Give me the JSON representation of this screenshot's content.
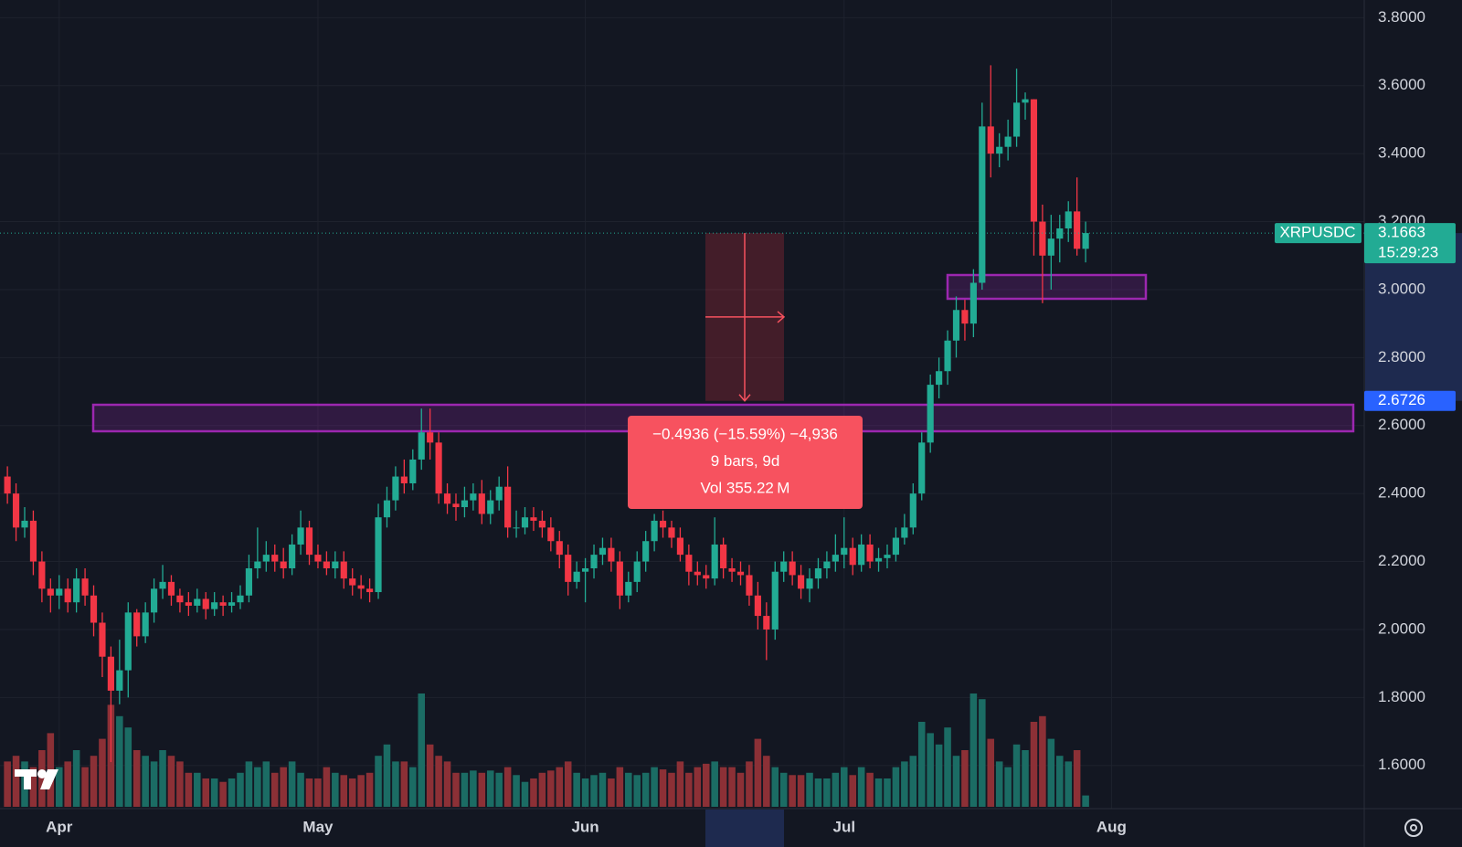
{
  "chart_data": {
    "type": "candlestick",
    "up_color": "#22ab94",
    "down_color": "#f23645",
    "volume_up_color": "#1b6c64",
    "volume_down_color": "#8c3036",
    "grid": true,
    "xlim": [
      -0.86,
      157.3
    ],
    "xticks": [
      {
        "value": 6,
        "label": "Apr"
      },
      {
        "value": 36,
        "label": "May"
      },
      {
        "value": 67,
        "label": "Jun"
      },
      {
        "value": 97,
        "label": "Jul"
      },
      {
        "value": 128,
        "label": "Aug"
      }
    ],
    "ylim": [
      1.473,
      3.852
    ],
    "yticks": [
      {
        "value": 1.6,
        "label": "1.6000"
      },
      {
        "value": 1.8,
        "label": "1.8000"
      },
      {
        "value": 2.0,
        "label": "2.0000"
      },
      {
        "value": 2.2,
        "label": "2.2000"
      },
      {
        "value": 2.4,
        "label": "2.4000"
      },
      {
        "value": 2.6,
        "label": "2.6000"
      },
      {
        "value": 2.8,
        "label": "2.8000"
      },
      {
        "value": 3.0,
        "label": "3.0000"
      },
      {
        "value": 3.2,
        "label": "3.2000"
      },
      {
        "value": 3.4,
        "label": "3.4000"
      },
      {
        "value": 3.6,
        "label": "3.6000"
      },
      {
        "value": 3.8,
        "label": "3.8000"
      }
    ],
    "open": [
      2.45,
      2.4,
      2.3,
      2.32,
      2.2,
      2.12,
      2.1,
      2.12,
      2.08,
      2.15,
      2.1,
      2.02,
      1.92,
      1.82,
      1.88,
      2.05,
      1.98,
      2.05,
      2.12,
      2.14,
      2.1,
      2.08,
      2.07,
      2.09,
      2.06,
      2.08,
      2.07,
      2.08,
      2.1,
      2.18,
      2.2,
      2.22,
      2.2,
      2.18,
      2.25,
      2.3,
      2.22,
      2.2,
      2.18,
      2.2,
      2.15,
      2.13,
      2.12,
      2.11,
      2.33,
      2.38,
      2.45,
      2.43,
      2.5,
      2.58,
      2.55,
      2.4,
      2.37,
      2.36,
      2.38,
      2.4,
      2.34,
      2.38,
      2.42,
      2.3,
      2.3,
      2.33,
      2.32,
      2.3,
      2.26,
      2.22,
      2.14,
      2.17,
      2.18,
      2.22,
      2.24,
      2.2,
      2.1,
      2.14,
      2.2,
      2.26,
      2.32,
      2.3,
      2.27,
      2.22,
      2.17,
      2.16,
      2.15,
      2.25,
      2.18,
      2.17,
      2.16,
      2.1,
      2.04,
      2.0,
      2.17,
      2.2,
      2.16,
      2.12,
      2.15,
      2.18,
      2.2,
      2.22,
      2.24,
      2.19,
      2.25,
      2.2,
      2.21,
      2.22,
      2.27,
      2.3,
      2.4,
      2.55,
      2.72,
      2.76,
      2.85,
      2.94,
      2.9,
      3.02,
      3.48,
      3.4,
      3.42,
      3.45,
      3.55,
      3.56,
      3.2,
      3.1,
      3.15,
      3.18,
      3.23,
      3.12
    ],
    "high": [
      2.48,
      2.43,
      2.36,
      2.35,
      2.23,
      2.15,
      2.16,
      2.15,
      2.18,
      2.18,
      2.13,
      2.05,
      1.95,
      1.97,
      2.08,
      2.06,
      2.08,
      2.15,
      2.19,
      2.16,
      2.12,
      2.11,
      2.12,
      2.11,
      2.11,
      2.1,
      2.11,
      2.13,
      2.22,
      2.3,
      2.26,
      2.25,
      2.24,
      2.28,
      2.35,
      2.32,
      2.25,
      2.23,
      2.23,
      2.23,
      2.18,
      2.16,
      2.15,
      2.37,
      2.42,
      2.48,
      2.5,
      2.53,
      2.65,
      2.65,
      2.58,
      2.43,
      2.4,
      2.42,
      2.43,
      2.44,
      2.41,
      2.45,
      2.48,
      2.35,
      2.36,
      2.36,
      2.35,
      2.33,
      2.29,
      2.25,
      2.2,
      2.21,
      2.25,
      2.27,
      2.27,
      2.23,
      2.17,
      2.23,
      2.29,
      2.34,
      2.35,
      2.32,
      2.3,
      2.25,
      2.2,
      2.19,
      2.33,
      2.27,
      2.21,
      2.2,
      2.19,
      2.14,
      2.08,
      2.2,
      2.23,
      2.23,
      2.19,
      2.18,
      2.21,
      2.23,
      2.28,
      2.33,
      2.27,
      2.28,
      2.28,
      2.24,
      2.25,
      2.3,
      2.34,
      2.43,
      2.58,
      2.75,
      2.8,
      2.88,
      2.98,
      2.97,
      3.06,
      3.55,
      3.66,
      3.46,
      3.5,
      3.65,
      3.58,
      3.56,
      3.25,
      3.22,
      3.22,
      3.26,
      3.33,
      3.2
    ],
    "low": [
      2.37,
      2.26,
      2.27,
      2.16,
      2.08,
      2.05,
      2.06,
      2.05,
      2.05,
      2.07,
      1.98,
      1.86,
      1.61,
      1.78,
      1.8,
      1.95,
      1.96,
      2.02,
      2.09,
      2.07,
      2.05,
      2.04,
      2.05,
      2.03,
      2.04,
      2.04,
      2.05,
      2.06,
      2.08,
      2.15,
      2.17,
      2.17,
      2.15,
      2.16,
      2.22,
      2.19,
      2.18,
      2.16,
      2.15,
      2.12,
      2.1,
      2.09,
      2.08,
      2.09,
      2.3,
      2.35,
      2.4,
      2.41,
      2.47,
      2.5,
      2.37,
      2.34,
      2.32,
      2.33,
      2.35,
      2.31,
      2.31,
      2.35,
      2.27,
      2.27,
      2.28,
      2.29,
      2.27,
      2.23,
      2.18,
      2.1,
      2.12,
      2.08,
      2.15,
      2.19,
      2.17,
      2.06,
      2.08,
      2.11,
      2.17,
      2.23,
      2.27,
      2.24,
      2.2,
      2.13,
      2.13,
      2.12,
      2.13,
      2.15,
      2.14,
      2.13,
      2.07,
      2.0,
      1.91,
      1.97,
      2.14,
      2.13,
      2.09,
      2.08,
      2.12,
      2.15,
      2.17,
      2.18,
      2.16,
      2.17,
      2.18,
      2.17,
      2.18,
      2.2,
      2.25,
      2.28,
      2.38,
      2.52,
      2.68,
      2.72,
      2.8,
      2.85,
      2.86,
      3.0,
      3.33,
      3.36,
      3.38,
      3.42,
      3.5,
      3.1,
      2.96,
      3.0,
      3.08,
      3.14,
      3.1,
      3.08
    ],
    "close": [
      2.4,
      2.3,
      2.32,
      2.2,
      2.12,
      2.1,
      2.12,
      2.08,
      2.15,
      2.1,
      2.02,
      1.92,
      1.82,
      1.88,
      2.05,
      1.98,
      2.05,
      2.12,
      2.14,
      2.1,
      2.08,
      2.07,
      2.09,
      2.06,
      2.08,
      2.07,
      2.08,
      2.1,
      2.18,
      2.2,
      2.22,
      2.2,
      2.18,
      2.25,
      2.3,
      2.22,
      2.2,
      2.18,
      2.2,
      2.15,
      2.13,
      2.12,
      2.11,
      2.33,
      2.38,
      2.45,
      2.43,
      2.5,
      2.58,
      2.55,
      2.4,
      2.37,
      2.36,
      2.38,
      2.4,
      2.34,
      2.38,
      2.42,
      2.3,
      2.3,
      2.33,
      2.32,
      2.3,
      2.26,
      2.22,
      2.14,
      2.17,
      2.18,
      2.22,
      2.24,
      2.2,
      2.1,
      2.14,
      2.2,
      2.26,
      2.32,
      2.3,
      2.27,
      2.22,
      2.17,
      2.16,
      2.15,
      2.25,
      2.18,
      2.17,
      2.16,
      2.1,
      2.04,
      2.0,
      2.17,
      2.2,
      2.16,
      2.12,
      2.15,
      2.18,
      2.2,
      2.22,
      2.24,
      2.19,
      2.25,
      2.2,
      2.21,
      2.22,
      2.27,
      2.3,
      2.4,
      2.55,
      2.72,
      2.76,
      2.85,
      2.94,
      2.9,
      3.02,
      3.48,
      3.4,
      3.42,
      3.45,
      3.55,
      3.56,
      3.2,
      3.1,
      3.15,
      3.18,
      3.23,
      3.12,
      3.1663
    ],
    "volume": [
      40,
      45,
      40,
      35,
      50,
      65,
      35,
      40,
      50,
      35,
      45,
      60,
      90,
      80,
      70,
      50,
      45,
      40,
      50,
      45,
      40,
      30,
      30,
      25,
      25,
      22,
      25,
      30,
      40,
      35,
      40,
      30,
      35,
      40,
      30,
      25,
      25,
      35,
      30,
      28,
      25,
      28,
      30,
      45,
      55,
      40,
      40,
      35,
      100,
      55,
      45,
      40,
      30,
      30,
      32,
      30,
      32,
      30,
      35,
      28,
      22,
      25,
      30,
      32,
      35,
      40,
      30,
      25,
      28,
      30,
      25,
      35,
      30,
      28,
      30,
      35,
      33,
      30,
      40,
      30,
      35,
      38,
      40,
      35,
      35,
      30,
      40,
      60,
      45,
      35,
      30,
      28,
      28,
      30,
      25,
      25,
      30,
      35,
      28,
      35,
      30,
      25,
      25,
      35,
      40,
      45,
      75,
      65,
      55,
      70,
      45,
      50,
      100,
      95,
      60,
      40,
      35,
      55,
      50,
      75,
      80,
      60,
      45,
      40,
      50,
      10
    ],
    "price_tags": [
      {
        "symbol": "XRPUSDC",
        "value": 3.1663,
        "countdown": "15:29:23",
        "color": "#22ab94"
      },
      {
        "value": 2.6726,
        "color": "#2962ff"
      }
    ],
    "measure": {
      "lines": [
        "−0.4936 (−15.59%) −4,936",
        "9 bars, 9d",
        "Vol 355.22 M"
      ],
      "color": "#f7525f"
    }
  }
}
